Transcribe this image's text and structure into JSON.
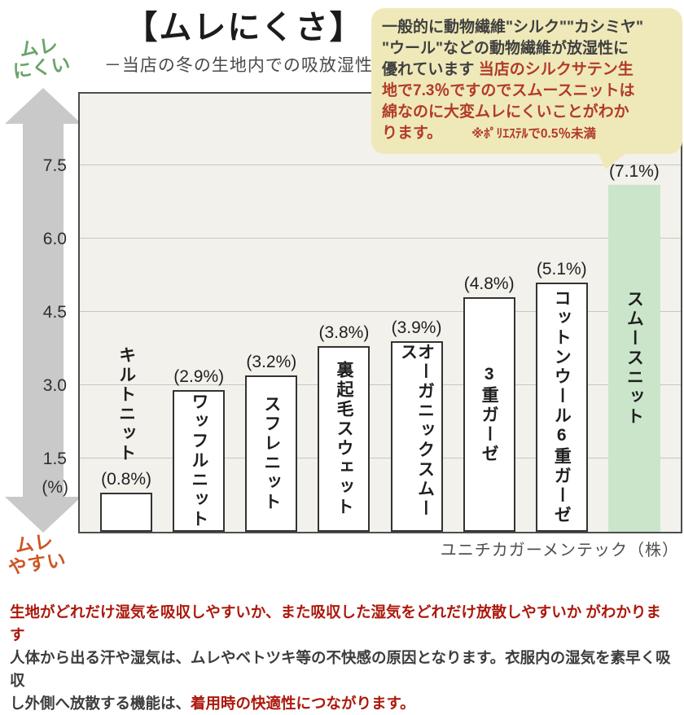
{
  "title": "【ムレにくさ】",
  "subtitle": "－当店の冬の生地内での吸放湿性 -",
  "arrow": {
    "top_line1": "ムレ",
    "top_line2": "にくい",
    "bottom_line1": "ムレ",
    "bottom_line2": "やすい"
  },
  "bubble": {
    "text_dark": "一般的に動物繊維\"シルク\"\"カシミヤ\"\n\"ウール\"などの動物繊維が放湿性に\n優れています ",
    "text_red": "当店のシルクサテン生\n地で7.3％ですのでスムースニットは\n綿なのに大変ムレにくいことがわか\nります。",
    "note_red": "※ﾎﾟﾘｴｽﾃﾙで0.5％未満"
  },
  "chart_data": {
    "type": "bar",
    "categories": [
      "キルトニット",
      "ワッフルニット",
      "スフレニット",
      "裏起毛スウェット",
      "オーガニックスムース",
      "3重ガーゼ",
      "コットンウール6重ガーゼ",
      "スムースニット"
    ],
    "values": [
      0.8,
      2.9,
      3.2,
      3.8,
      3.9,
      4.8,
      5.1,
      7.1
    ],
    "value_labels": [
      "(0.8%)",
      "(2.9%)",
      "(3.2%)",
      "(3.8%)",
      "(3.9%)",
      "(4.8%)",
      "(5.1%)",
      "(7.1%)"
    ],
    "unit_label": "(%)",
    "yticks": [
      "7.5",
      "6.0",
      "4.5",
      "3.0",
      "1.5"
    ],
    "ytick_values": [
      7.5,
      6.0,
      4.5,
      3.0,
      1.5
    ],
    "ylim": [
      0,
      8.9
    ],
    "grid": true,
    "legend": "none",
    "highlight_index": 7,
    "label_outside_indices": [
      0
    ]
  },
  "source": "ユニチカガーメンテック（株）",
  "footer": {
    "red_lead": "生地がどれだけ湿気を吸収しやすいか、また吸収した湿気をどれだけ放散しやすいか がわかります\n",
    "dark_body": "人体から出る汗や湿気は、ムレやベトツキ等の不快感の原因となります。衣服内の湿気を素早く吸収\nし外側へ放散する機能は、",
    "red_tail": "着用時の快適性につながります。"
  },
  "colors": {
    "plot_bg": "#f2f1eb",
    "grid_line": "#c7c6c1",
    "plot_border": "#4d4d4d",
    "bar_color": "#ffffff",
    "bar_border": "#333333",
    "highlight_color": "#cbe5cb",
    "arrow_gray": "#c9c9c9",
    "bubble_bg": "#efe9ba",
    "bubble_dark_text": "#3f3f3f",
    "bubble_red_text": "#b23a28",
    "footer_red": "#ac180c",
    "footer_dark": "#3c3c3c",
    "top_label_green": "#69a369",
    "bottom_label_orange": "#ce5526"
  }
}
